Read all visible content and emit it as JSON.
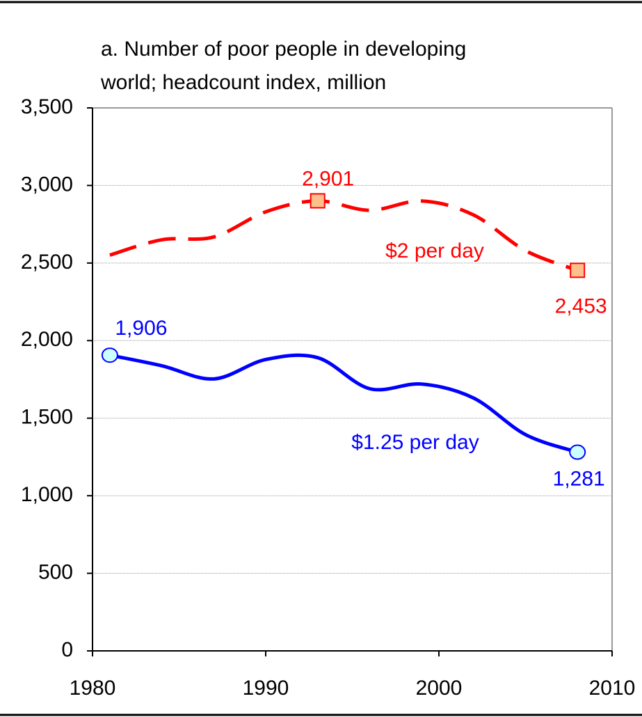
{
  "chart_data": {
    "type": "line",
    "title": [
      "a. Number of poor people in developing",
      "world; headcount index, million"
    ],
    "x": [
      1981,
      1984,
      1987,
      1990,
      1993,
      1996,
      1999,
      2002,
      2005,
      2008
    ],
    "series": [
      {
        "name": "$2 per day",
        "color": "#ff0000",
        "dashed": true,
        "values": [
          2551,
          2650,
          2668,
          2830,
          2901,
          2840,
          2900,
          2810,
          2580,
          2453
        ],
        "value_labels": [
          null,
          null,
          null,
          null,
          "2,901",
          null,
          null,
          null,
          null,
          "2,453"
        ]
      },
      {
        "name": "$1.25 per day",
        "color": "#0000ff",
        "dashed": false,
        "values": [
          1906,
          1838,
          1753,
          1878,
          1890,
          1690,
          1720,
          1630,
          1394,
          1281
        ],
        "value_labels": [
          "1,906",
          null,
          null,
          null,
          null,
          null,
          null,
          null,
          null,
          "1,281"
        ]
      }
    ],
    "xlim": [
      1980,
      2010
    ],
    "xticks": [
      1980,
      1990,
      2000,
      2010
    ],
    "ylim": [
      0,
      3500
    ],
    "yticks": [
      0,
      500,
      {
        "value": 1000,
        "label": "1,000"
      },
      {
        "value": 1500,
        "label": "1,500"
      },
      {
        "value": 2000,
        "label": "2,000"
      },
      {
        "value": 2500,
        "label": "2,500"
      },
      {
        "value": 3000,
        "label": "3,000"
      },
      {
        "value": 3500,
        "label": "3,500"
      }
    ],
    "grid": true
  }
}
